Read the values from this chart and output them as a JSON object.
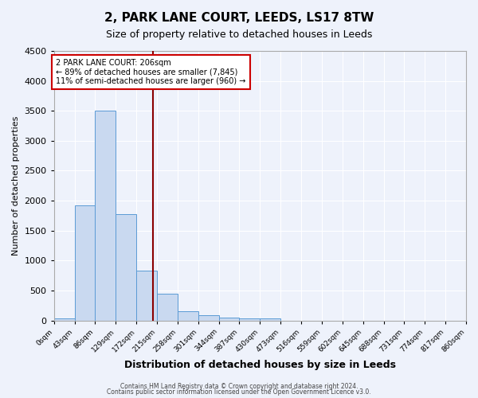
{
  "title": "2, PARK LANE COURT, LEEDS, LS17 8TW",
  "subtitle": "Size of property relative to detached houses in Leeds",
  "xlabel": "Distribution of detached houses by size in Leeds",
  "ylabel": "Number of detached properties",
  "footnote1": "Contains HM Land Registry data © Crown copyright and database right 2024.",
  "footnote2": "Contains public sector information licensed under the Open Government Licence v3.0.",
  "bin_labels": [
    "0sqm",
    "43sqm",
    "86sqm",
    "129sqm",
    "172sqm",
    "215sqm",
    "258sqm",
    "301sqm",
    "344sqm",
    "387sqm",
    "430sqm",
    "473sqm",
    "516sqm",
    "559sqm",
    "602sqm",
    "645sqm",
    "688sqm",
    "731sqm",
    "774sqm",
    "817sqm",
    "860sqm"
  ],
  "bar_heights": [
    30,
    1920,
    3500,
    1780,
    830,
    450,
    160,
    90,
    50,
    30,
    30,
    0,
    0,
    0,
    0,
    0,
    0,
    0,
    0,
    0
  ],
  "bar_color": "#c9d9f0",
  "bar_edge_color": "#5b9bd5",
  "vline_color": "#8b0000",
  "ylim": [
    0,
    4500
  ],
  "yticks": [
    0,
    500,
    1000,
    1500,
    2000,
    2500,
    3000,
    3500,
    4000,
    4500
  ],
  "annotation_title": "2 PARK LANE COURT: 206sqm",
  "annotation_line1": "← 89% of detached houses are smaller (7,845)",
  "annotation_line2": "11% of semi-detached houses are larger (960) →",
  "annotation_box_color": "#ffffff",
  "annotation_box_edge": "#cc0000",
  "bg_color": "#eef2fb",
  "grid_color": "#ffffff",
  "title_fontsize": 11,
  "subtitle_fontsize": 9,
  "xlabel_fontsize": 9,
  "ylabel_fontsize": 8
}
